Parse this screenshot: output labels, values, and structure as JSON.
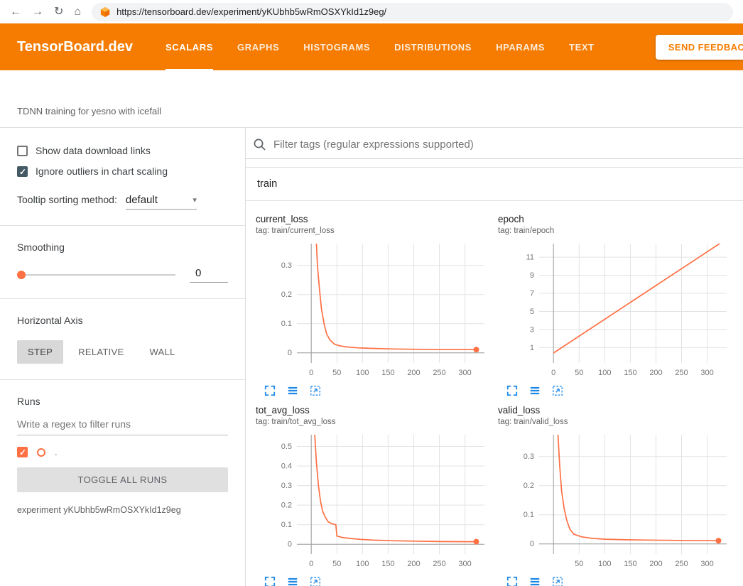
{
  "browser": {
    "url": "https://tensorboard.dev/experiment/yKUbhb5wRmOSXYkId1z9eg/",
    "icons": {
      "back": "←",
      "forward": "→",
      "reload": "↻",
      "home": "⌂"
    }
  },
  "header": {
    "brand": "TensorBoard.dev",
    "tabs": [
      {
        "label": "SCALARS"
      },
      {
        "label": "GRAPHS"
      },
      {
        "label": "HISTOGRAMS"
      },
      {
        "label": "DISTRIBUTIONS"
      },
      {
        "label": "HPARAMS"
      },
      {
        "label": "TEXT"
      }
    ],
    "active_tab": "SCALARS",
    "feedback_label": "SEND FEEDBACK",
    "accent_color": "#f57c00"
  },
  "experiment_bar": {
    "description": "TDNN training for yesno with icefall"
  },
  "sidebar": {
    "show_download_label": "Show data download links",
    "show_download_checked": false,
    "ignore_outliers_label": "Ignore outliers in chart scaling",
    "ignore_outliers_checked": true,
    "tooltip_sort_label": "Tooltip sorting method:",
    "tooltip_sort_value": "default",
    "dropdown_arrow": "▾",
    "smoothing_label": "Smoothing",
    "smoothing_value": "0",
    "horizontal_axis_label": "Horizontal Axis",
    "axis_options": [
      {
        "label": "STEP",
        "selected": true
      },
      {
        "label": "RELATIVE",
        "selected": false
      },
      {
        "label": "WALL",
        "selected": false
      }
    ],
    "runs_label": "Runs",
    "runs_filter_placeholder": "Write a regex to filter runs",
    "run": {
      "name": ".",
      "checked": true,
      "color": "#ff7043"
    },
    "toggle_all_label": "TOGGLE ALL RUNS",
    "experiment_note": "experiment yKUbhb5wRmOSXYkId1z9eg"
  },
  "main": {
    "filter_placeholder": "Filter tags (regular expressions supported)",
    "group_title": "train",
    "chart_tool_icons": [
      "fullscreen-icon",
      "data-rows-icon",
      "fit-to-data-icon"
    ]
  },
  "chart_data": [
    {
      "type": "line",
      "title": "current_loss",
      "tag": "tag: train/current_loss",
      "xlabel": "step",
      "xticks": [
        0,
        50,
        100,
        150,
        200,
        250,
        300
      ],
      "yticks": [
        0,
        0.1,
        0.2,
        0.3
      ],
      "xlim": [
        -28,
        338
      ],
      "ylim": [
        -0.035,
        0.375
      ],
      "zero_line": true,
      "end_dot": true,
      "color": "#ff7043",
      "points": [
        [
          2,
          0.9
        ],
        [
          8,
          0.45
        ],
        [
          12,
          0.3
        ],
        [
          16,
          0.22
        ],
        [
          20,
          0.15
        ],
        [
          25,
          0.1
        ],
        [
          30,
          0.065
        ],
        [
          36,
          0.045
        ],
        [
          45,
          0.03
        ],
        [
          55,
          0.024
        ],
        [
          70,
          0.02
        ],
        [
          90,
          0.017
        ],
        [
          120,
          0.015
        ],
        [
          160,
          0.013
        ],
        [
          200,
          0.012
        ],
        [
          250,
          0.011
        ],
        [
          300,
          0.011
        ],
        [
          322,
          0.011
        ]
      ]
    },
    {
      "type": "line",
      "title": "epoch",
      "tag": "tag: train/epoch",
      "xlabel": "step",
      "xticks": [
        0,
        50,
        100,
        150,
        200,
        250,
        300
      ],
      "yticks": [
        1,
        3,
        5,
        7,
        9,
        11
      ],
      "xlim": [
        -28,
        338
      ],
      "ylim": [
        -0.7,
        12.5
      ],
      "zero_line": false,
      "end_dot": false,
      "color": "#ff7043",
      "points": [
        [
          0,
          0.4
        ],
        [
          335,
          12.9
        ]
      ]
    },
    {
      "type": "line",
      "title": "tot_avg_loss",
      "tag": "tag: train/tot_avg_loss",
      "xlabel": "step",
      "xticks": [
        0,
        50,
        100,
        150,
        200,
        250,
        300
      ],
      "yticks": [
        0,
        0.1,
        0.2,
        0.3,
        0.4,
        0.5
      ],
      "xlim": [
        -28,
        338
      ],
      "ylim": [
        -0.05,
        0.56
      ],
      "zero_line": true,
      "end_dot": true,
      "color": "#ff7043",
      "points": [
        [
          2,
          1.0
        ],
        [
          6,
          0.6
        ],
        [
          10,
          0.42
        ],
        [
          14,
          0.3
        ],
        [
          18,
          0.22
        ],
        [
          22,
          0.17
        ],
        [
          27,
          0.14
        ],
        [
          33,
          0.115
        ],
        [
          40,
          0.105
        ],
        [
          48,
          0.1
        ],
        [
          50,
          0.042
        ],
        [
          60,
          0.035
        ],
        [
          75,
          0.03
        ],
        [
          95,
          0.025
        ],
        [
          120,
          0.021
        ],
        [
          160,
          0.018
        ],
        [
          200,
          0.016
        ],
        [
          250,
          0.014
        ],
        [
          300,
          0.013
        ],
        [
          322,
          0.013
        ]
      ]
    },
    {
      "type": "line",
      "title": "valid_loss",
      "tag": "tag: train/valid_loss",
      "xlabel": "step",
      "xticks": [
        50,
        100,
        150,
        200,
        250,
        300
      ],
      "yticks": [
        0,
        0.1,
        0.2,
        0.3
      ],
      "xlim": [
        -28,
        338
      ],
      "ylim": [
        -0.035,
        0.375
      ],
      "zero_line": true,
      "end_dot": true,
      "color": "#ff7043",
      "points": [
        [
          2,
          0.8
        ],
        [
          8,
          0.4
        ],
        [
          12,
          0.27
        ],
        [
          16,
          0.18
        ],
        [
          21,
          0.12
        ],
        [
          26,
          0.08
        ],
        [
          32,
          0.05
        ],
        [
          40,
          0.033
        ],
        [
          55,
          0.024
        ],
        [
          75,
          0.019
        ],
        [
          100,
          0.016
        ],
        [
          140,
          0.014
        ],
        [
          180,
          0.013
        ],
        [
          230,
          0.012
        ],
        [
          280,
          0.011
        ],
        [
          322,
          0.011
        ]
      ]
    }
  ]
}
